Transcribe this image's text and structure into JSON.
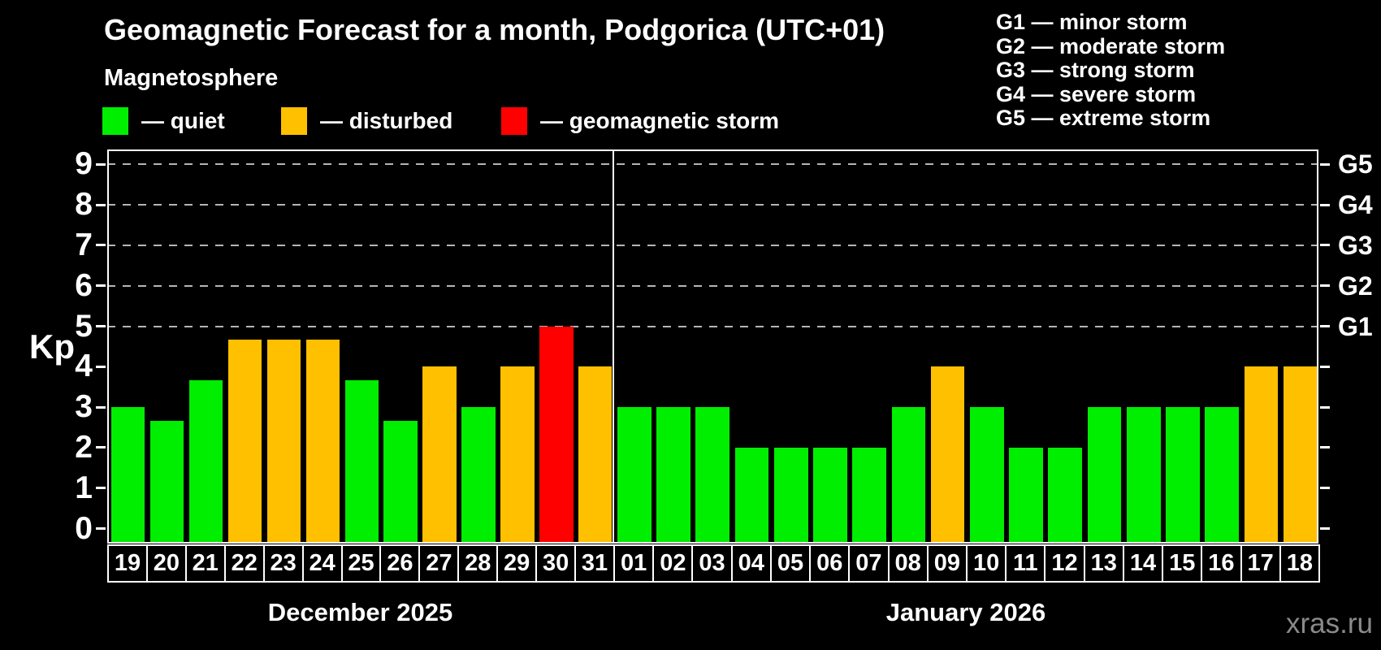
{
  "title": "Geomagnetic Forecast for a month, Podgorica (UTC+01)",
  "subtitle": "Magnetosphere",
  "legend": {
    "items": [
      {
        "key": "quiet",
        "label": "— quiet",
        "color": "#00ee00"
      },
      {
        "key": "disturbed",
        "label": "— disturbed",
        "color": "#ffc000"
      },
      {
        "key": "storm",
        "label": "— geomagnetic storm",
        "color": "#ff0000"
      }
    ]
  },
  "storm_scale_legend": [
    "G1 — minor storm",
    "G2 — moderate storm",
    "G3 — strong storm",
    "G4 — severe storm",
    "G5 — extreme storm"
  ],
  "watermark": "xras.ru",
  "chart_data": {
    "type": "bar",
    "title": "Geomagnetic Forecast for a month, Podgorica (UTC+01)",
    "ylabel": "Kp",
    "ylim": [
      0,
      9
    ],
    "yticks": [
      0,
      1,
      2,
      3,
      4,
      5,
      6,
      7,
      8,
      9
    ],
    "grid": "dashed horizontal lines at Kp 5,6,7,8,9 only",
    "legend_position": "top-left",
    "right_axis_labels": [
      {
        "kp": 5,
        "label": "G1"
      },
      {
        "kp": 6,
        "label": "G2"
      },
      {
        "kp": 7,
        "label": "G3"
      },
      {
        "kp": 8,
        "label": "G4"
      },
      {
        "kp": 9,
        "label": "G5"
      }
    ],
    "colors": {
      "quiet": "#00ee00",
      "disturbed": "#ffc000",
      "storm": "#ff0000"
    },
    "months": [
      {
        "label": "December 2025",
        "days": [
          {
            "day": "19",
            "kp": 3,
            "status": "quiet"
          },
          {
            "day": "20",
            "kp": 2.67,
            "status": "quiet"
          },
          {
            "day": "21",
            "kp": 3.67,
            "status": "quiet"
          },
          {
            "day": "22",
            "kp": 4.67,
            "status": "disturbed"
          },
          {
            "day": "23",
            "kp": 4.67,
            "status": "disturbed"
          },
          {
            "day": "24",
            "kp": 4.67,
            "status": "disturbed"
          },
          {
            "day": "25",
            "kp": 3.67,
            "status": "quiet"
          },
          {
            "day": "26",
            "kp": 2.67,
            "status": "quiet"
          },
          {
            "day": "27",
            "kp": 4,
            "status": "disturbed"
          },
          {
            "day": "28",
            "kp": 3,
            "status": "quiet"
          },
          {
            "day": "29",
            "kp": 4,
            "status": "disturbed"
          },
          {
            "day": "30",
            "kp": 5,
            "status": "storm"
          },
          {
            "day": "31",
            "kp": 4,
            "status": "disturbed"
          }
        ]
      },
      {
        "label": "January 2026",
        "days": [
          {
            "day": "01",
            "kp": 3,
            "status": "quiet"
          },
          {
            "day": "02",
            "kp": 3,
            "status": "quiet"
          },
          {
            "day": "03",
            "kp": 3,
            "status": "quiet"
          },
          {
            "day": "04",
            "kp": 2,
            "status": "quiet"
          },
          {
            "day": "05",
            "kp": 2,
            "status": "quiet"
          },
          {
            "day": "06",
            "kp": 2,
            "status": "quiet"
          },
          {
            "day": "07",
            "kp": 2,
            "status": "quiet"
          },
          {
            "day": "08",
            "kp": 3,
            "status": "quiet"
          },
          {
            "day": "09",
            "kp": 4,
            "status": "disturbed"
          },
          {
            "day": "10",
            "kp": 3,
            "status": "quiet"
          },
          {
            "day": "11",
            "kp": 2,
            "status": "quiet"
          },
          {
            "day": "12",
            "kp": 2,
            "status": "quiet"
          },
          {
            "day": "13",
            "kp": 3,
            "status": "quiet"
          },
          {
            "day": "14",
            "kp": 3,
            "status": "quiet"
          },
          {
            "day": "15",
            "kp": 3,
            "status": "quiet"
          },
          {
            "day": "16",
            "kp": 3,
            "status": "quiet"
          },
          {
            "day": "17",
            "kp": 4,
            "status": "disturbed"
          },
          {
            "day": "18",
            "kp": 4,
            "status": "disturbed"
          }
        ]
      }
    ]
  }
}
